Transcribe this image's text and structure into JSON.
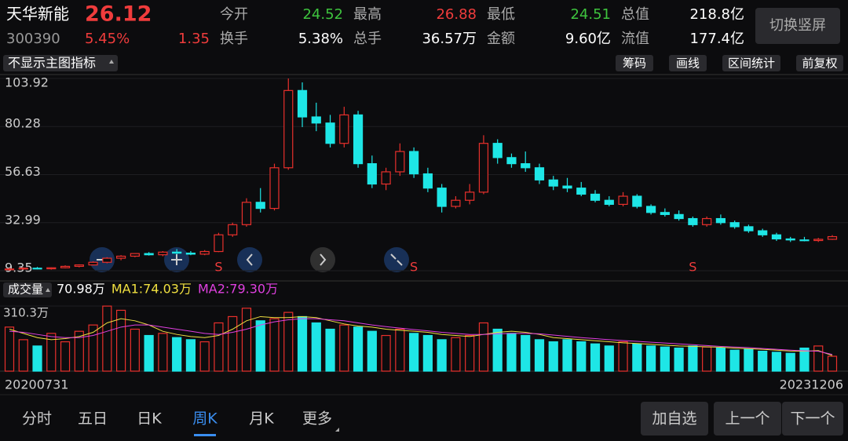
{
  "header": {
    "name": "天华新能",
    "price": "26.12",
    "code": "300390",
    "change_pct": "5.45%",
    "change": "1.35",
    "switch_button": "切换竖屏",
    "fields": [
      {
        "label": "今开",
        "value": "24.52",
        "color": "#3ec33e"
      },
      {
        "label": "最高",
        "value": "26.88",
        "color": "#f03c3c"
      },
      {
        "label": "最低",
        "value": "24.51",
        "color": "#3ec33e"
      },
      {
        "label": "总值",
        "value": "218.8亿",
        "color": "#ffffff"
      },
      {
        "label": "换手",
        "value": "5.38%",
        "color": "#ffffff"
      },
      {
        "label": "总手",
        "value": "36.57万",
        "color": "#ffffff"
      },
      {
        "label": "金额",
        "value": "9.60亿",
        "color": "#ffffff"
      },
      {
        "label": "流值",
        "value": "177.4亿",
        "color": "#ffffff"
      }
    ]
  },
  "toolbar": {
    "indicator": "不显示主图指标",
    "buttons": [
      "筹码",
      "画线",
      "区间统计",
      "前复权"
    ]
  },
  "chart": {
    "type": "candlestick",
    "up_color": "#e8302c",
    "down_color": "#1ee6e6",
    "ylim": [
      9.35,
      103.92
    ],
    "yticks": [
      9.35,
      32.99,
      56.63,
      80.28,
      103.92
    ],
    "candles": [
      [
        10,
        10.8,
        9.35,
        10.2
      ],
      [
        10.2,
        11,
        9.8,
        10.6
      ],
      [
        10.6,
        11.2,
        10,
        10.3
      ],
      [
        10.3,
        11,
        9.9,
        10.8
      ],
      [
        10.8,
        12,
        10.5,
        11.5
      ],
      [
        11.5,
        12.5,
        11,
        12.2
      ],
      [
        12.2,
        14,
        12,
        13.5
      ],
      [
        13.5,
        16,
        13,
        15.5
      ],
      [
        15.5,
        17,
        14.5,
        16.5
      ],
      [
        16.5,
        18,
        16,
        17.8
      ],
      [
        17.8,
        18.5,
        16.8,
        17.2
      ],
      [
        17.2,
        19,
        16.5,
        18.5
      ],
      [
        18.5,
        20,
        17.5,
        18
      ],
      [
        18,
        19,
        17,
        17.5
      ],
      [
        17.5,
        19.5,
        17,
        18.8
      ],
      [
        18.8,
        28,
        18.5,
        27
      ],
      [
        27,
        33,
        26,
        32
      ],
      [
        32,
        45,
        31,
        43
      ],
      [
        43,
        50,
        38,
        40
      ],
      [
        40,
        62,
        39,
        60
      ],
      [
        60,
        103.92,
        59,
        98
      ],
      [
        98,
        102,
        80,
        85
      ],
      [
        85,
        92,
        78,
        82
      ],
      [
        82,
        86,
        70,
        72
      ],
      [
        72,
        90,
        70,
        86
      ],
      [
        86,
        88,
        60,
        62
      ],
      [
        62,
        66,
        50,
        52
      ],
      [
        52,
        60,
        49,
        58
      ],
      [
        58,
        72,
        56,
        68
      ],
      [
        68,
        70,
        55,
        57
      ],
      [
        57,
        60,
        48,
        50
      ],
      [
        50,
        52,
        38,
        41
      ],
      [
        41,
        46,
        40,
        44
      ],
      [
        44,
        52,
        42,
        48
      ],
      [
        48,
        76,
        47,
        72
      ],
      [
        72,
        74,
        62,
        65
      ],
      [
        65,
        67,
        60,
        62
      ],
      [
        62,
        68,
        58,
        60
      ],
      [
        60,
        62,
        52,
        54
      ],
      [
        54,
        56,
        49,
        51
      ],
      [
        51,
        55,
        48,
        50
      ],
      [
        50,
        53,
        46,
        47
      ],
      [
        47,
        49,
        43,
        44
      ],
      [
        44,
        46,
        41,
        42
      ],
      [
        42,
        48,
        41,
        46
      ],
      [
        46,
        47,
        40,
        41
      ],
      [
        41,
        42,
        37,
        38
      ],
      [
        38,
        40,
        36,
        37
      ],
      [
        37,
        39,
        34,
        35
      ],
      [
        35,
        36,
        31,
        32
      ],
      [
        32,
        36,
        31,
        35
      ],
      [
        35,
        37,
        32,
        33
      ],
      [
        33,
        34,
        30,
        31
      ],
      [
        31,
        32,
        28,
        29
      ],
      [
        29,
        30,
        26,
        27
      ],
      [
        27,
        28,
        24,
        25
      ],
      [
        25,
        26,
        23.5,
        24.5
      ],
      [
        24.5,
        26,
        23.8,
        24.2
      ],
      [
        24.2,
        25.5,
        23.5,
        24.8
      ],
      [
        24.8,
        26.88,
        24.51,
        26.12
      ]
    ],
    "signals": [
      {
        "index": 15,
        "label": "S"
      },
      {
        "index": 29,
        "label": "S"
      },
      {
        "index": 49,
        "label": "S"
      }
    ],
    "volume": {
      "selector": "成交量",
      "legend": [
        {
          "text": "70.98万",
          "color": "#ffffff"
        },
        {
          "text": "MA1:74.03万",
          "color": "#f0e040"
        },
        {
          "text": "MA2:79.30万",
          "color": "#e040e0"
        }
      ],
      "ylim": [
        0,
        310.3
      ],
      "yticks": [
        {
          "value": 310.3,
          "label": "310.3万"
        }
      ],
      "values": [
        210,
        150,
        120,
        180,
        140,
        190,
        220,
        310,
        290,
        200,
        170,
        180,
        160,
        150,
        140,
        230,
        260,
        300,
        240,
        250,
        280,
        260,
        230,
        200,
        220,
        210,
        190,
        170,
        200,
        180,
        170,
        150,
        160,
        170,
        230,
        200,
        180,
        170,
        150,
        140,
        150,
        140,
        130,
        120,
        140,
        130,
        120,
        115,
        110,
        120,
        115,
        110,
        100,
        105,
        95,
        90,
        85,
        110,
        120,
        70.98
      ],
      "ma1": [
        200,
        180,
        160,
        150,
        155,
        165,
        185,
        230,
        250,
        240,
        220,
        190,
        175,
        165,
        160,
        170,
        200,
        240,
        260,
        255,
        255,
        260,
        255,
        240,
        225,
        215,
        210,
        200,
        195,
        190,
        185,
        175,
        170,
        165,
        175,
        185,
        190,
        185,
        175,
        160,
        155,
        150,
        145,
        140,
        135,
        132,
        128,
        124,
        120,
        118,
        116,
        114,
        110,
        107,
        104,
        100,
        96,
        95,
        98,
        74.03
      ],
      "ma1_color": "#f0e040",
      "ma2": [
        190,
        185,
        175,
        165,
        160,
        160,
        170,
        190,
        210,
        220,
        220,
        210,
        200,
        190,
        180,
        175,
        185,
        200,
        220,
        235,
        245,
        250,
        250,
        245,
        240,
        230,
        220,
        212,
        205,
        198,
        192,
        185,
        180,
        175,
        175,
        178,
        180,
        180,
        178,
        172,
        166,
        160,
        155,
        150,
        146,
        142,
        138,
        134,
        130,
        126,
        122,
        118,
        115,
        112,
        108,
        104,
        100,
        97,
        95,
        79.3
      ],
      "ma2_color": "#e040e0"
    },
    "x_start": "20200731",
    "x_end": "20231206"
  },
  "tabs": {
    "items": [
      "分时",
      "五日",
      "日K",
      "周K",
      "月K",
      "更多"
    ],
    "active": 3
  },
  "actions": [
    "加自选",
    "上一个",
    "下一个"
  ]
}
